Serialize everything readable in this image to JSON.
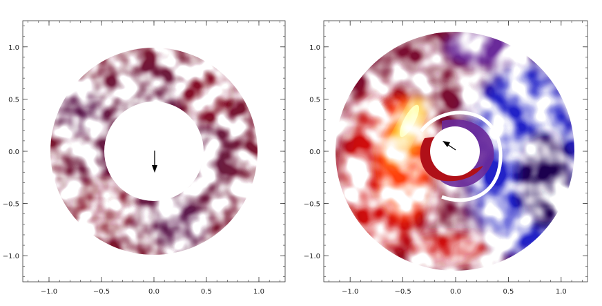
{
  "panels": [
    {
      "id": "left",
      "xticks": [
        "−1.0",
        "−0.5",
        "0.0",
        "0.5",
        "1.0"
      ],
      "yticks": [
        "1.0",
        "0.5",
        "0.0",
        "−0.5",
        "−1.0"
      ],
      "xtick_values": [
        -1.0,
        -0.5,
        0.0,
        0.5,
        1.0
      ],
      "ytick_values": [
        1.0,
        0.5,
        0.0,
        -0.5,
        -1.0
      ],
      "xlim": [
        -1.25,
        1.25
      ],
      "ylim": [
        -1.25,
        1.25
      ],
      "ring_inner_radius": 0.45,
      "ring_outer_radius": 0.98,
      "fill_colors": [
        "#7a1028",
        "#6e1a3c",
        "#5a1e54",
        "#8a1020"
      ],
      "arrow": {
        "direction": "down",
        "tip": [
          0.0,
          -0.2
        ]
      }
    },
    {
      "id": "right",
      "xticks": [
        "−1.0",
        "−0.5",
        "0.0",
        "0.5",
        "1.0"
      ],
      "yticks": [
        "1.0",
        "0.5",
        "0.0",
        "−0.5",
        "−1.0"
      ],
      "xtick_values": [
        -1.0,
        -0.5,
        0.0,
        0.5,
        1.0
      ],
      "ytick_values": [
        1.0,
        0.5,
        0.0,
        -0.5,
        -1.0
      ],
      "xlim": [
        -1.25,
        1.25
      ],
      "ylim": [
        -1.25,
        1.25
      ],
      "ring_inner_radius": 0.28,
      "ring_outer_radius": 1.12,
      "colormap": [
        "#1e0050",
        "#2020c8",
        "#6a2a9a",
        "#8a1030",
        "#d01010",
        "#ff4010",
        "#ff9a20",
        "#ffe040",
        "#fffe90"
      ],
      "arrow": {
        "direction": "up-left",
        "tip": [
          -0.07,
          0.07
        ]
      }
    }
  ]
}
